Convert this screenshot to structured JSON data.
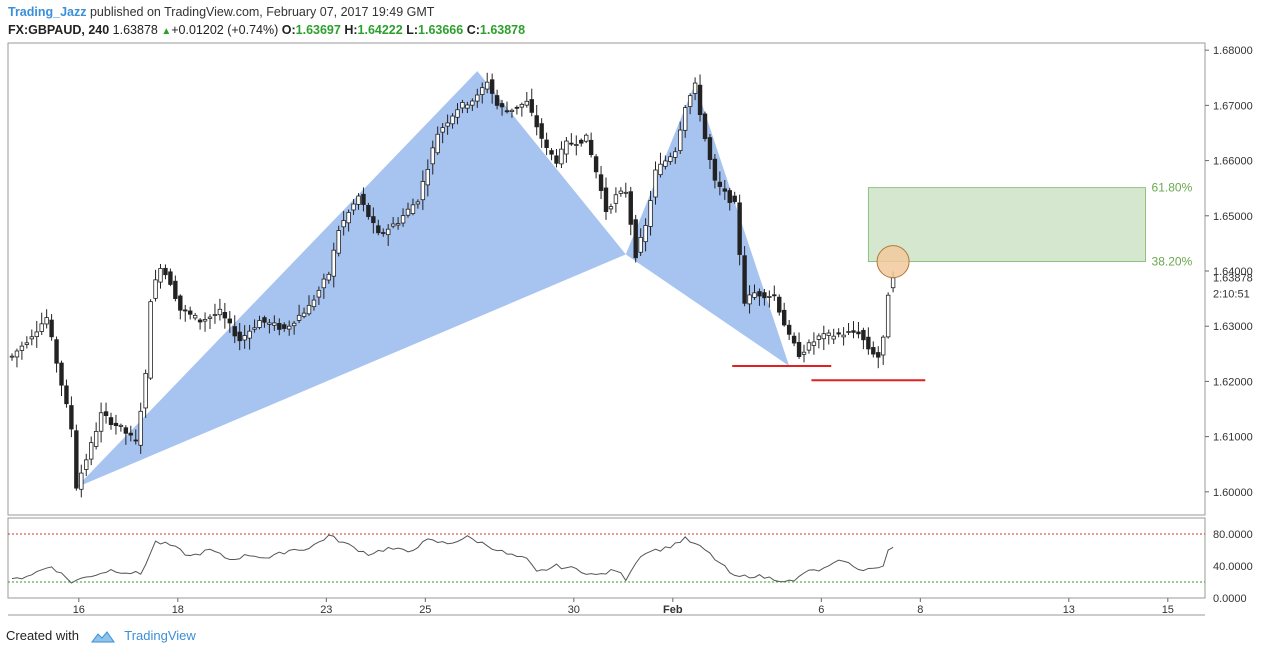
{
  "header": {
    "author": "Trading_Jazz",
    "published": "published on TradingView.com, February 07, 2017 19:49 GMT",
    "symbol_label": "FX:GBPAUD, 240",
    "last_price": "1.63878",
    "change": "+0.01202 (+0.74%)",
    "o_label": "O:",
    "o_value": "1.63697",
    "h_label": "H:",
    "h_value": "1.64222",
    "l_label": "L:",
    "l_value": "1.63666",
    "c_label": "C:",
    "c_value": "1.63878"
  },
  "footer": {
    "created_with": "Created with",
    "brand": "TradingView"
  },
  "colors": {
    "pattern_fill": "#a7c3f0",
    "zone_fill": "#d5e8cf",
    "zone_border": "#7bb86a",
    "fib_text": "#6aa84f",
    "support_line": "#e02020",
    "marker_fill": "#f2c99c",
    "rsi_line": "#555555",
    "rsi_upper": "#cc3333",
    "rsi_lower": "#339933"
  },
  "chart_data": {
    "type": "candlestick",
    "timeframe": "240",
    "ylim": [
      1.5958,
      1.6813
    ],
    "y_ticks": [
      "1.68000",
      "1.67000",
      "1.66000",
      "1.65000",
      "1.64000",
      "1.63000",
      "1.62000",
      "1.61000",
      "1.60000"
    ],
    "last_price_label": "1.63878",
    "countdown_label": "2:10:51",
    "x_ticks": [
      {
        "label": "16",
        "x_index": 13.5
      },
      {
        "label": "18",
        "x_index": 33.5
      },
      {
        "label": "23",
        "x_index": 63.5
      },
      {
        "label": "25",
        "x_index": 83.5
      },
      {
        "label": "30",
        "x_index": 113.5
      },
      {
        "label": "Feb",
        "x_index": 133.5
      },
      {
        "label": "6",
        "x_index": 163.5
      },
      {
        "label": "8",
        "x_index": 183.5
      },
      {
        "label": "13",
        "x_index": 213.5
      },
      {
        "label": "15",
        "x_index": 233.5
      }
    ],
    "anchors": [
      [
        0,
        1.6245
      ],
      [
        7,
        1.6315
      ],
      [
        12,
        1.6115
      ],
      [
        13,
        1.601
      ],
      [
        16,
        1.6085
      ],
      [
        18,
        1.614
      ],
      [
        22,
        1.6115
      ],
      [
        25,
        1.609
      ],
      [
        27,
        1.621
      ],
      [
        28,
        1.635
      ],
      [
        30,
        1.641
      ],
      [
        32,
        1.638
      ],
      [
        34,
        1.633
      ],
      [
        38,
        1.631
      ],
      [
        42,
        1.6325
      ],
      [
        46,
        1.6275
      ],
      [
        50,
        1.631
      ],
      [
        55,
        1.6295
      ],
      [
        60,
        1.6335
      ],
      [
        64,
        1.6395
      ],
      [
        66,
        1.6475
      ],
      [
        70,
        1.6535
      ],
      [
        74,
        1.6465
      ],
      [
        78,
        1.649
      ],
      [
        82,
        1.653
      ],
      [
        86,
        1.665
      ],
      [
        90,
        1.6695
      ],
      [
        94,
        1.6715
      ],
      [
        96,
        1.6745
      ],
      [
        98,
        1.67
      ],
      [
        100,
        1.669
      ],
      [
        104,
        1.6705
      ],
      [
        108,
        1.662
      ],
      [
        110,
        1.66
      ],
      [
        112,
        1.663
      ],
      [
        116,
        1.664
      ],
      [
        118,
        1.658
      ],
      [
        120,
        1.651
      ],
      [
        122,
        1.6535
      ],
      [
        124,
        1.6545
      ],
      [
        126,
        1.643
      ],
      [
        128,
        1.648
      ],
      [
        130,
        1.658
      ],
      [
        134,
        1.662
      ],
      [
        136,
        1.67
      ],
      [
        138,
        1.6735
      ],
      [
        140,
        1.664
      ],
      [
        142,
        1.656
      ],
      [
        146,
        1.652
      ],
      [
        148,
        1.6345
      ],
      [
        150,
        1.636
      ],
      [
        154,
        1.6355
      ],
      [
        157,
        1.628
      ],
      [
        159,
        1.625
      ],
      [
        163,
        1.628
      ],
      [
        167,
        1.6285
      ],
      [
        171,
        1.629
      ],
      [
        173,
        1.626
      ],
      [
        175,
        1.6245
      ],
      [
        176,
        1.6275
      ],
      [
        177,
        1.636
      ],
      [
        178,
        1.6387
      ]
    ],
    "pattern": {
      "X": [
        13,
        1.6008
      ],
      "A": [
        94,
        1.6762
      ],
      "B": [
        124,
        1.643
      ],
      "C": [
        138,
        1.674
      ],
      "D": [
        157,
        1.6228
      ]
    },
    "fib_zone": {
      "from": 1.6417,
      "to": 1.6551,
      "labels": [
        "61.80%",
        "38.20%"
      ]
    },
    "support_lines": [
      {
        "y": 1.6228,
        "from_index": 145.5,
        "to_index": 165.5
      },
      {
        "y": 1.6202,
        "from_index": 161.5,
        "to_index": 184.5
      }
    ],
    "marker": {
      "x_index": 178,
      "y": 1.6417
    },
    "rsi": {
      "ylim": [
        0,
        100
      ],
      "ticks": [
        "80.0000",
        "40.0000",
        "0.0000"
      ],
      "levels": [
        80,
        20
      ],
      "anchors": [
        [
          0,
          22
        ],
        [
          4,
          30
        ],
        [
          8,
          40
        ],
        [
          12,
          20
        ],
        [
          16,
          28
        ],
        [
          20,
          35
        ],
        [
          26,
          30
        ],
        [
          29,
          70
        ],
        [
          32,
          66
        ],
        [
          36,
          52
        ],
        [
          40,
          60
        ],
        [
          44,
          48
        ],
        [
          48,
          54
        ],
        [
          52,
          50
        ],
        [
          56,
          60
        ],
        [
          60,
          62
        ],
        [
          64,
          78
        ],
        [
          68,
          66
        ],
        [
          72,
          55
        ],
        [
          76,
          62
        ],
        [
          80,
          58
        ],
        [
          84,
          72
        ],
        [
          88,
          68
        ],
        [
          92,
          76
        ],
        [
          96,
          66
        ],
        [
          100,
          55
        ],
        [
          104,
          48
        ],
        [
          106,
          32
        ],
        [
          110,
          40
        ],
        [
          114,
          36
        ],
        [
          118,
          28
        ],
        [
          122,
          35
        ],
        [
          124,
          24
        ],
        [
          126,
          45
        ],
        [
          128,
          58
        ],
        [
          132,
          62
        ],
        [
          136,
          74
        ],
        [
          140,
          60
        ],
        [
          144,
          38
        ],
        [
          146,
          26
        ],
        [
          150,
          28
        ],
        [
          154,
          24
        ],
        [
          158,
          20
        ],
        [
          160,
          32
        ],
        [
          164,
          36
        ],
        [
          168,
          48
        ],
        [
          170,
          38
        ],
        [
          172,
          36
        ],
        [
          176,
          38
        ],
        [
          177,
          60
        ],
        [
          178,
          64
        ]
      ]
    }
  }
}
